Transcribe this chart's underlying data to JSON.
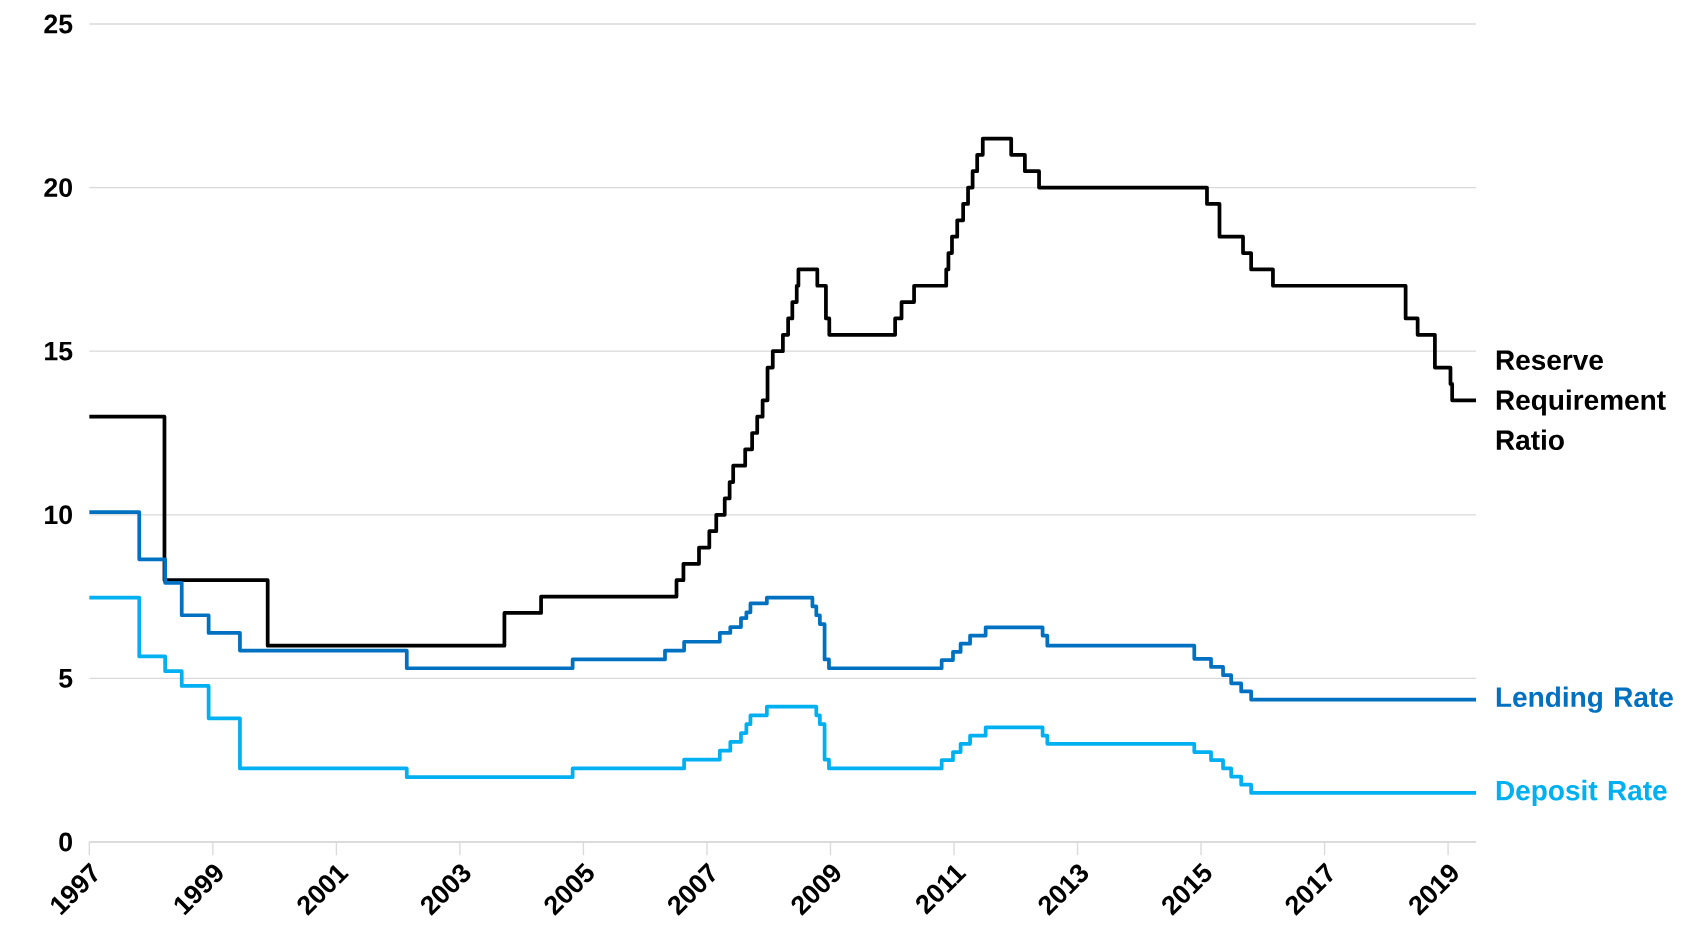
{
  "chart_data": {
    "type": "step",
    "xlim": [
      "1997-01-01",
      "2019-06-15"
    ],
    "ylim": [
      0,
      25
    ],
    "yticks": [
      0,
      5,
      10,
      15,
      20,
      25
    ],
    "grid": "y",
    "xticks": [
      {
        "value": "1997-01-01",
        "label": "1997"
      },
      {
        "value": "1999-01-01",
        "label": "1999"
      },
      {
        "value": "2001-01-01",
        "label": "2001"
      },
      {
        "value": "2003-01-01",
        "label": "2003"
      },
      {
        "value": "2005-01-01",
        "label": "2005"
      },
      {
        "value": "2007-01-01",
        "label": "2007"
      },
      {
        "value": "2009-01-01",
        "label": "2009"
      },
      {
        "value": "2011-01-01",
        "label": "2011"
      },
      {
        "value": "2013-01-01",
        "label": "2013"
      },
      {
        "value": "2015-01-01",
        "label": "2015"
      },
      {
        "value": "2017-01-01",
        "label": "2017"
      },
      {
        "value": "2019-01-01",
        "label": "2019"
      }
    ],
    "series": [
      {
        "name": "Reserve Requirement Ratio",
        "color": "#000000",
        "x": [
          "1997-01-01",
          "1998-03-21",
          "1999-11-21",
          "2003-09-21",
          "2004-04-25",
          "2006-07-05",
          "2006-08-15",
          "2006-11-15",
          "2007-01-15",
          "2007-02-25",
          "2007-04-16",
          "2007-05-15",
          "2007-06-05",
          "2007-08-15",
          "2007-09-25",
          "2007-10-25",
          "2007-11-26",
          "2007-12-25",
          "2008-01-25",
          "2008-03-25",
          "2008-04-25",
          "2008-05-20",
          "2008-06-15",
          "2008-06-25",
          "2008-10-15",
          "2008-12-05",
          "2008-12-25",
          "2010-01-18",
          "2010-02-25",
          "2010-05-10",
          "2010-11-16",
          "2010-11-29",
          "2010-12-20",
          "2011-01-20",
          "2011-02-24",
          "2011-03-25",
          "2011-04-21",
          "2011-05-18",
          "2011-06-20",
          "2011-12-05",
          "2012-02-24",
          "2012-05-18",
          "2015-02-05",
          "2015-04-20",
          "2015-09-06",
          "2015-10-24",
          "2016-03-01",
          "2018-04-25",
          "2018-07-05",
          "2018-10-15",
          "2019-01-15",
          "2019-01-25",
          "2019-06-15"
        ],
        "values": [
          13,
          8,
          6,
          7,
          7.5,
          8,
          8.5,
          9,
          9.5,
          10,
          10.5,
          11,
          11.5,
          12,
          12.5,
          13,
          13.5,
          14.5,
          15,
          15.5,
          16,
          16.5,
          17,
          17.5,
          17,
          16,
          15.5,
          16,
          16.5,
          17,
          17.5,
          18,
          18.5,
          19,
          19.5,
          20,
          20.5,
          21,
          21.5,
          21,
          20.5,
          20,
          19.5,
          18.5,
          18,
          17.5,
          17,
          16,
          15.5,
          14.5,
          14,
          13.5,
          13.5
        ]
      },
      {
        "name": "Lending Rate",
        "color": "#0070c0",
        "x": [
          "1997-01-01",
          "1997-10-23",
          "1998-03-25",
          "1998-07-01",
          "1998-12-07",
          "1999-06-10",
          "2002-02-21",
          "2004-10-29",
          "2006-04-28",
          "2006-08-19",
          "2007-03-18",
          "2007-05-19",
          "2007-07-21",
          "2007-08-22",
          "2007-09-15",
          "2007-12-21",
          "2008-09-16",
          "2008-10-09",
          "2008-10-30",
          "2008-11-27",
          "2008-12-23",
          "2010-10-20",
          "2010-12-26",
          "2011-02-09",
          "2011-04-06",
          "2011-07-07",
          "2012-06-08",
          "2012-07-06",
          "2014-11-22",
          "2015-03-01",
          "2015-05-11",
          "2015-06-28",
          "2015-08-26",
          "2015-10-24",
          "2019-06-15"
        ],
        "values": [
          10.08,
          8.64,
          7.92,
          6.93,
          6.39,
          5.85,
          5.31,
          5.58,
          5.85,
          6.12,
          6.39,
          6.57,
          6.84,
          7.02,
          7.29,
          7.47,
          7.2,
          6.93,
          6.66,
          5.58,
          5.31,
          5.56,
          5.81,
          6.06,
          6.31,
          6.56,
          6.31,
          6,
          5.6,
          5.35,
          5.1,
          4.85,
          4.6,
          4.35,
          4.35
        ]
      },
      {
        "name": "Deposit Rate",
        "color": "#00b0f0",
        "x": [
          "1997-01-01",
          "1997-10-23",
          "1998-03-25",
          "1998-07-01",
          "1998-12-07",
          "1999-06-10",
          "2002-02-21",
          "2004-10-29",
          "2006-08-19",
          "2007-03-18",
          "2007-05-19",
          "2007-07-21",
          "2007-08-22",
          "2007-09-15",
          "2007-12-21",
          "2008-10-09",
          "2008-10-30",
          "2008-11-27",
          "2008-12-23",
          "2010-10-20",
          "2010-12-26",
          "2011-02-09",
          "2011-04-06",
          "2011-07-07",
          "2012-06-08",
          "2012-07-06",
          "2014-11-22",
          "2015-03-01",
          "2015-05-11",
          "2015-06-28",
          "2015-08-26",
          "2015-10-24",
          "2019-06-15"
        ],
        "values": [
          7.47,
          5.67,
          5.22,
          4.77,
          3.78,
          2.25,
          1.98,
          2.25,
          2.52,
          2.79,
          3.06,
          3.33,
          3.6,
          3.87,
          4.14,
          3.87,
          3.6,
          2.52,
          2.25,
          2.5,
          2.75,
          3,
          3.25,
          3.5,
          3.25,
          3,
          2.75,
          2.5,
          2.25,
          2,
          1.75,
          1.5,
          1.5
        ]
      }
    ]
  }
}
